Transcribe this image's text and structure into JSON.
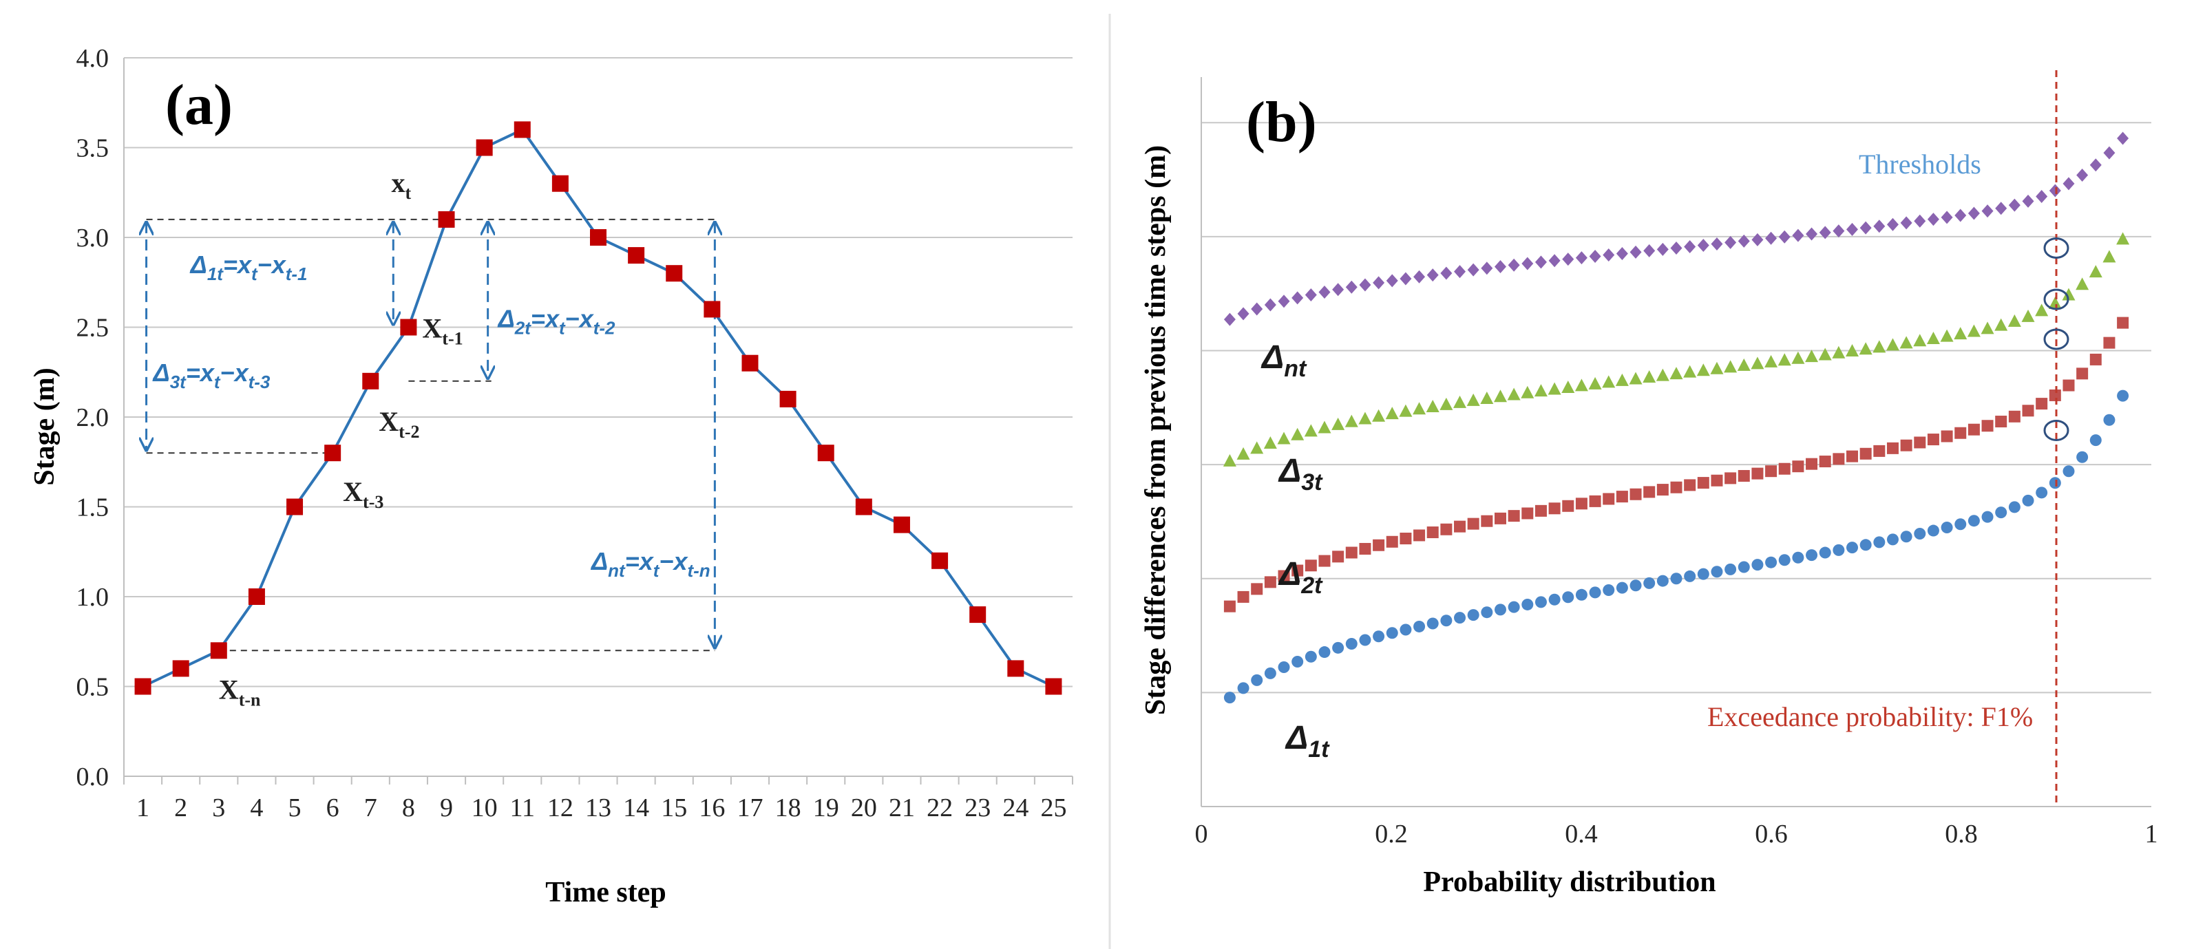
{
  "colors": {
    "line_a": "#2e75b6",
    "marker_a": "#c00000",
    "annotation": "#2e75b6",
    "grid": "#c8c8c8",
    "exceedance": "#c0392b",
    "thresholds": "#5b9bd5"
  },
  "chart_data": [
    {
      "type": "line",
      "panel_label": "(a)",
      "xlabel": "Time step",
      "ylabel": "Stage (m)",
      "ylim": [
        0.0,
        4.0
      ],
      "yticks": [
        "0.0",
        "0.5",
        "1.0",
        "1.5",
        "2.0",
        "2.5",
        "3.0",
        "3.5",
        "4.0"
      ],
      "categories": [
        "1",
        "2",
        "3",
        "4",
        "5",
        "6",
        "7",
        "8",
        "9",
        "10",
        "11",
        "12",
        "13",
        "14",
        "15",
        "16",
        "17",
        "18",
        "19",
        "20",
        "21",
        "22",
        "23",
        "24",
        "25"
      ],
      "values": [
        0.5,
        0.6,
        0.7,
        1.0,
        1.5,
        1.8,
        2.2,
        2.5,
        3.1,
        3.5,
        3.6,
        3.3,
        3.0,
        2.9,
        2.8,
        2.6,
        2.3,
        2.1,
        1.8,
        1.5,
        1.4,
        1.2,
        0.9,
        0.6,
        0.5
      ],
      "point_labels": [
        {
          "text": "x",
          "sub": "t",
          "at_step": 9
        },
        {
          "text": "X",
          "sub": "t-1",
          "at_step": 8
        },
        {
          "text": "X",
          "sub": "t-2",
          "at_step": 7
        },
        {
          "text": "X",
          "sub": "t-3",
          "at_step": 6
        },
        {
          "text": "X",
          "sub": "t-n",
          "at_step": 3
        }
      ],
      "differences": [
        {
          "label": "Δ",
          "label_sub": "1t",
          "eq": "=x",
          "eq_sub1": "t",
          "minus": "−x",
          "eq_sub2": "t-1",
          "from_value": 3.1,
          "to_value": 2.5
        },
        {
          "label": "Δ",
          "label_sub": "2t",
          "eq": "=x",
          "eq_sub1": "t",
          "minus": "−x",
          "eq_sub2": "t-2",
          "from_value": 3.1,
          "to_value": 2.2
        },
        {
          "label": "Δ",
          "label_sub": "3t",
          "eq": "=x",
          "eq_sub1": "t",
          "minus": "−x",
          "eq_sub2": "t-3",
          "from_value": 3.1,
          "to_value": 1.8
        },
        {
          "label": "Δ",
          "label_sub": "nt",
          "eq": "=x",
          "eq_sub1": "t",
          "minus": "−x",
          "eq_sub2": "t-n",
          "from_value": 3.1,
          "to_value": 0.7
        }
      ]
    },
    {
      "type": "scatter",
      "panel_label": "(b)",
      "xlabel": "Probability distribution",
      "ylabel": "Stage differences from previous time steps (m)",
      "xlim": [
        0,
        1
      ],
      "xticks": [
        "0",
        "0.2",
        "0.4",
        "0.6",
        "0.8",
        "1"
      ],
      "ylim": [
        0,
        6.4
      ],
      "x_range": [
        0.03,
        0.97
      ],
      "points_per_series": 67,
      "series": [
        {
          "name": "Δ",
          "sub": "1t",
          "color": "#4a86c8",
          "marker": "circle",
          "center": 2.0,
          "spread": 0.75,
          "tail": 0.7
        },
        {
          "name": "Δ",
          "sub": "2t",
          "color": "#c0504d",
          "marker": "square",
          "center": 2.8,
          "spread": 0.75,
          "tail": 0.5
        },
        {
          "name": "Δ",
          "sub": "3t",
          "color": "#8fbc45",
          "marker": "triangle",
          "center": 3.8,
          "spread": 0.55,
          "tail": 0.52
        },
        {
          "name": "Δ",
          "sub": "nt",
          "color": "#8a63b0",
          "marker": "diamond",
          "center": 4.9,
          "spread": 0.45,
          "tail": 0.42
        }
      ],
      "threshold_label": "Thresholds",
      "threshold_x": 0.9,
      "threshold_values": [
        3.3,
        4.1,
        4.45,
        4.9
      ],
      "exceedance_label": "Exceedance probability: F1%"
    }
  ]
}
